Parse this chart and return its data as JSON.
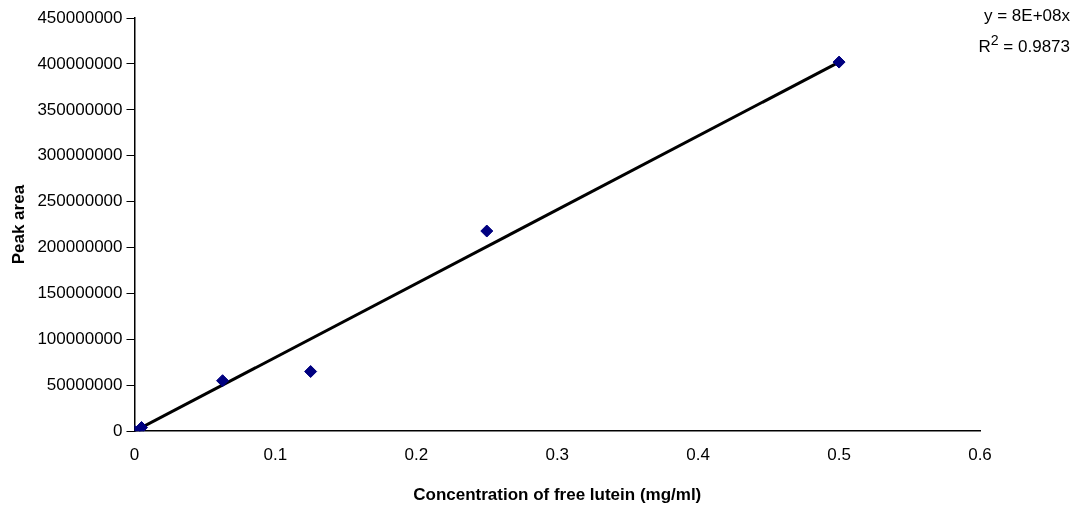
{
  "chart_data": {
    "type": "scatter",
    "xlabel": "Concentration of free lutein (mg/ml)",
    "ylabel": "Peak area",
    "xlim": [
      0,
      0.6
    ],
    "xticks": [
      0,
      0.1,
      0.2,
      0.3,
      0.4,
      0.5,
      0.6
    ],
    "ylim": [
      0,
      450000000
    ],
    "yticks": [
      0,
      50000000,
      100000000,
      150000000,
      200000000,
      250000000,
      300000000,
      350000000,
      400000000,
      450000000
    ],
    "grid": false,
    "legend": false,
    "marker": "diamond",
    "series": [
      {
        "type": "scatter",
        "color": "#000080",
        "x": [
          0,
          0.005,
          0.0625,
          0.125,
          0.25,
          0.5
        ],
        "values": [
          0,
          4000000,
          55000000,
          65000000,
          218000000,
          402000000
        ]
      },
      {
        "type": "line",
        "color": "#000000",
        "x": [
          0,
          0.5
        ],
        "values": [
          0,
          402000000
        ],
        "marker": "none",
        "line_style": "solid"
      }
    ],
    "annotations": [
      "y = 8E+08x",
      "R$^{2}$ = 0.9873"
    ]
  }
}
